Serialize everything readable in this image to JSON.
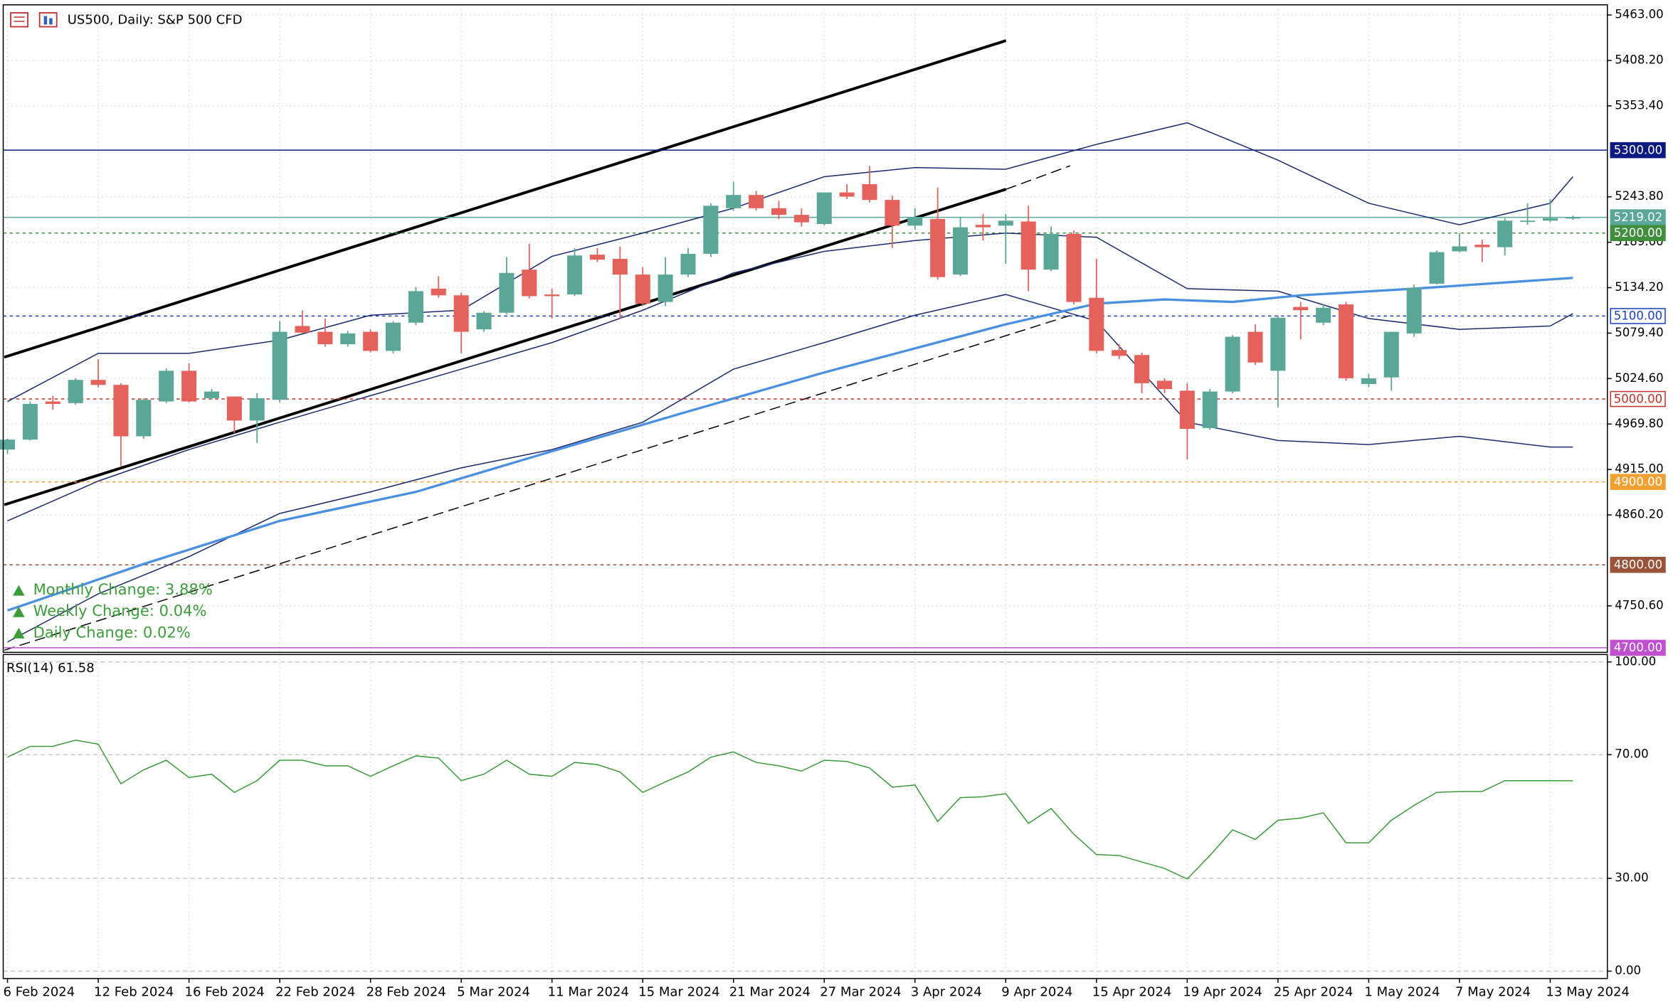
{
  "chart_data": {
    "type": "candlestick",
    "title": "US500, Daily:  S&P 500 CFD",
    "categories": [
      "6 Feb 2024",
      null,
      null,
      null,
      "12 Feb 2024",
      null,
      null,
      null,
      "16 Feb 2024",
      null,
      null,
      null,
      "22 Feb 2024",
      null,
      null,
      null,
      "28 Feb 2024",
      null,
      null,
      null,
      "5 Mar 2024",
      null,
      null,
      null,
      "11 Mar 2024",
      null,
      null,
      null,
      "15 Mar 2024",
      null,
      null,
      null,
      "21 Mar 2024",
      null,
      null,
      null,
      "27 Mar 2024",
      null,
      null,
      null,
      "3 Apr 2024",
      null,
      null,
      null,
      "9 Apr 2024",
      null,
      null,
      null,
      "15 Apr 2024",
      null,
      null,
      null,
      "19 Apr 2024",
      null,
      null,
      null,
      "25 Apr 2024",
      null,
      null,
      null,
      "1 May 2024",
      null,
      null,
      null,
      "7 May 2024",
      null,
      null,
      null,
      "13 May 2024",
      null
    ],
    "open": [
      4939,
      4951,
      4997,
      4995,
      5023,
      5017,
      4955,
      4997,
      5034,
      5001,
      5003,
      4974,
      4999,
      5088,
      5081,
      5066,
      5081,
      5058,
      5092,
      5133,
      5125,
      5084,
      5104,
      5156,
      5126,
      5126,
      5174,
      5169,
      5150,
      5117,
      5150,
      5175,
      5230,
      5246,
      5230,
      5222,
      5211,
      5249,
      5259,
      5240,
      5209,
      5217,
      5150,
      5210,
      5209,
      5214,
      5156,
      5199,
      5122,
      5059,
      5053,
      5022,
      5010,
      4965,
      5009,
      5081,
      5034,
      5111,
      5092,
      5114,
      5018,
      5026,
      5079,
      5139,
      5178,
      5186,
      5183,
      5214,
      5215,
      5218
    ],
    "high": [
      4952,
      4997,
      5004,
      5025,
      5048,
      5019,
      5001,
      5037,
      5043,
      5012,
      5003,
      5007,
      5094,
      5107,
      5097,
      5082,
      5084,
      5094,
      5135,
      5148,
      5128,
      5106,
      5171,
      5187,
      5133,
      5182,
      5182,
      5184,
      5159,
      5171,
      5182,
      5236,
      5262,
      5251,
      5239,
      5230,
      5249,
      5259,
      5281,
      5245,
      5230,
      5255,
      5219,
      5223,
      5223,
      5233,
      5208,
      5203,
      5169,
      5066,
      5056,
      5025,
      5019,
      5012,
      5077,
      5090,
      5101,
      5117,
      5114,
      5117,
      5030,
      5077,
      5138,
      5179,
      5200,
      5192,
      5218,
      5236,
      5241,
      5221
    ],
    "low": [
      4934,
      4950,
      4987,
      4993,
      5014,
      4919,
      4952,
      4995,
      4996,
      4999,
      4959,
      4947,
      4996,
      5079,
      5063,
      5063,
      5056,
      5055,
      5089,
      5122,
      5055,
      5081,
      5102,
      5121,
      5097,
      5124,
      5165,
      5097,
      5112,
      5112,
      5147,
      5171,
      5227,
      5227,
      5217,
      5208,
      5209,
      5241,
      5237,
      5182,
      5204,
      5144,
      5148,
      5191,
      5163,
      5130,
      5154,
      5114,
      5055,
      5048,
      5007,
      5007,
      4927,
      4963,
      5007,
      5041,
      4990,
      5072,
      5089,
      5022,
      5014,
      5010,
      5075,
      5138,
      5177,
      5165,
      5173,
      5210,
      5213,
      5216
    ],
    "close": [
      4951,
      4994,
      4994,
      5023,
      5017,
      4955,
      4999,
      5034,
      4997,
      5009,
      4974,
      5001,
      5081,
      5080,
      5066,
      5079,
      5058,
      5092,
      5130,
      5125,
      5081,
      5104,
      5152,
      5124,
      5124,
      5173,
      5168,
      5150,
      5115,
      5150,
      5175,
      5233,
      5246,
      5230,
      5222,
      5213,
      5249,
      5244,
      5240,
      5209,
      5219,
      5147,
      5207,
      5207,
      5215,
      5156,
      5199,
      5117,
      5058,
      5052,
      5019,
      5012,
      4964,
      5009,
      5075,
      5044,
      5098,
      5107,
      5110,
      5025,
      5025,
      5081,
      5134,
      5177,
      5184,
      5183,
      5215,
      5215,
      5218,
      5219.02
    ],
    "up_color": "#5aa797",
    "down_color": "#e5625c",
    "ylim": [
      4694.5,
      5475.25
    ],
    "yticks": [
      {
        "value": 5463,
        "label": "5463.00"
      },
      {
        "value": 5408.2,
        "label": "5408.20"
      },
      {
        "value": 5353.4,
        "label": "5353.40"
      },
      {
        "value": 5243.8,
        "label": "5243.80"
      },
      {
        "value": 5189,
        "label": "5189.00"
      },
      {
        "value": 5134.2,
        "label": "5134.20"
      },
      {
        "value": 5079.4,
        "label": "5079.40"
      },
      {
        "value": 5024.6,
        "label": "5024.60"
      },
      {
        "value": 4969.8,
        "label": "4969.80"
      },
      {
        "value": 4915,
        "label": "4915.00"
      },
      {
        "value": 4860.2,
        "label": "4860.20"
      },
      {
        "value": 4750.6,
        "label": "4750.60"
      }
    ],
    "grid": true,
    "levels": [
      {
        "value": 5300,
        "label": "5300.00",
        "color": "#0d1a80",
        "text_color": "#ffffff",
        "dashed": false
      },
      {
        "value": 5219.02,
        "label": "5219.02",
        "color": "#5aa797",
        "text_color": "#ffffff",
        "dashed": false
      },
      {
        "value": 5200,
        "label": "5200.00",
        "color": "#3f8f3f",
        "text_color": "#ffffff",
        "dashed": true
      },
      {
        "value": 5100,
        "label": "5100.00",
        "color": "#1a3fc0",
        "text_color": "#1a3fc0",
        "dashed": true,
        "outline": true
      },
      {
        "value": 5000,
        "label": "5000.00",
        "color": "#c0302a",
        "text_color": "#c0302a",
        "dashed": true,
        "outline": true
      },
      {
        "value": 4900,
        "label": "4900.00",
        "color": "#f0a030",
        "text_color": "#ffffff",
        "dashed": true
      },
      {
        "value": 4800,
        "label": "4800.00",
        "color": "#9a5238",
        "text_color": "#ffffff",
        "dashed": true
      },
      {
        "value": 4700,
        "label": "4700.00",
        "color": "#c050d0",
        "text_color": "#ffffff",
        "dashed": false
      }
    ],
    "indicators": [
      {
        "type": "line",
        "color": "#1a2a6c",
        "width": 1,
        "x": [
          0,
          4,
          8,
          12,
          16,
          20,
          24,
          28,
          32,
          36,
          40,
          44,
          48,
          52,
          56,
          60,
          64,
          68,
          69
        ],
        "values": [
          4997,
          5055,
          5055,
          5071,
          5101,
          5107,
          5172,
          5200,
          5230,
          5268,
          5279,
          5277,
          5307,
          5333,
          5288,
          5236,
          5210,
          5236,
          5268
        ]
      },
      {
        "type": "line",
        "color": "#1a2a6c",
        "width": 1,
        "x": [
          0,
          4,
          8,
          12,
          16,
          20,
          24,
          28,
          32,
          36,
          40,
          44,
          48,
          52,
          56,
          60,
          64,
          68,
          69
        ],
        "values": [
          4853,
          4901,
          4939,
          4972,
          5004,
          5036,
          5068,
          5107,
          5152,
          5178,
          5191,
          5200,
          5195,
          5133,
          5130,
          5097,
          5084,
          5088,
          5103
        ]
      },
      {
        "type": "line",
        "color": "#1a2a6c",
        "width": 1,
        "x": [
          0,
          4,
          8,
          12,
          16,
          20,
          24,
          28,
          32,
          36,
          40,
          44,
          48,
          52,
          56,
          60,
          64,
          68,
          69
        ],
        "values": [
          4707,
          4765,
          4810,
          4862,
          4888,
          4917,
          4939,
          4972,
          5036,
          5068,
          5101,
          5126,
          5094,
          4972,
          4950,
          4945,
          4955,
          4942,
          4942
        ]
      },
      {
        "type": "line",
        "color": "#4a8fe0",
        "width": 2.2,
        "x": [
          0,
          6,
          12,
          18,
          24,
          30,
          36,
          40,
          44,
          48,
          51,
          54,
          57,
          62,
          69
        ],
        "values": [
          4745,
          4801,
          4853,
          4888,
          4937,
          4985,
          5032,
          5061,
          5090,
          5115,
          5120,
          5117,
          5125,
          5133,
          5146
        ]
      }
    ],
    "annotations": [
      "Monthly Change: 3.88%",
      "Weekly Change: 0.04%",
      "Daily Change: 0.02%"
    ],
    "rsi": {
      "title": "RSI(14)",
      "color": "#3a9a3a",
      "values": [
        69.2,
        72.7,
        72.7,
        74.7,
        73.4,
        60.6,
        65.1,
        68.2,
        62.6,
        63.7,
        57.8,
        61.6,
        68.2,
        68.2,
        66.4,
        66.4,
        63.0,
        66.4,
        69.6,
        68.9,
        61.6,
        63.7,
        68.2,
        63.7,
        63.0,
        67.5,
        66.8,
        64.4,
        57.8,
        61.2,
        64.4,
        69.2,
        70.9,
        67.5,
        66.4,
        64.7,
        68.2,
        67.8,
        65.7,
        59.5,
        60.2,
        48.4,
        56.1,
        56.4,
        57.4,
        47.8,
        52.6,
        44.3,
        37.7,
        37.4,
        35.3,
        33.2,
        29.8,
        37.4,
        45.7,
        42.6,
        48.8,
        49.5,
        51.2,
        41.5,
        41.5,
        48.8,
        53.6,
        57.8,
        58.1,
        58.1,
        61.6,
        61.6,
        61.6,
        61.58
      ],
      "ylim": [
        -2.4,
        102.4
      ],
      "yticks": [
        {
          "value": 100,
          "label": "100.00"
        },
        {
          "value": 70,
          "label": "70.00"
        },
        {
          "value": 30,
          "label": "30.00"
        },
        {
          "value": 0,
          "label": "0.00"
        }
      ]
    }
  }
}
